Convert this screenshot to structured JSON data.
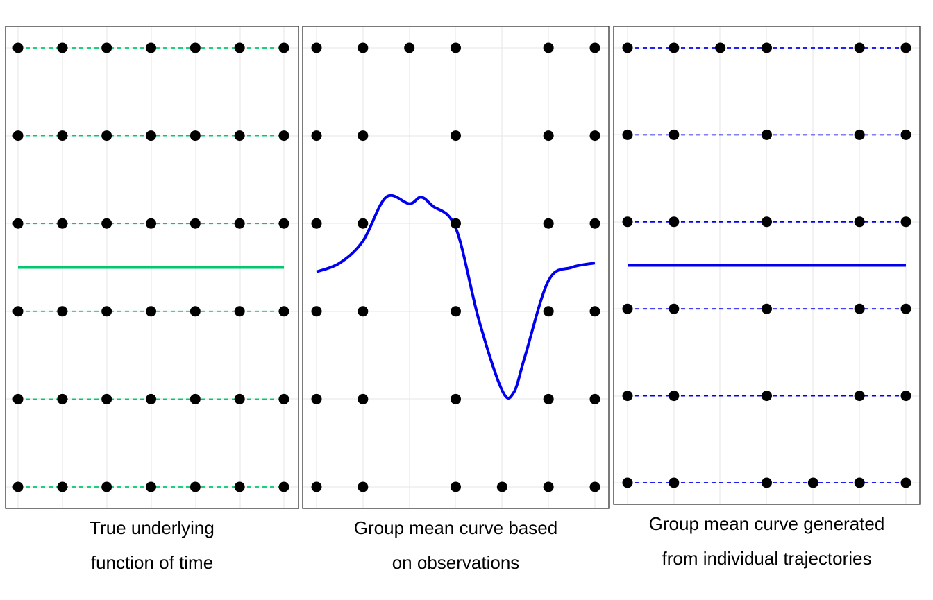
{
  "chart_data": [
    {
      "type": "line",
      "caption_lines": [
        "True underlying",
        "function of time"
      ],
      "x": [
        1,
        2,
        3,
        4,
        5,
        6,
        7
      ],
      "ylim": [
        0,
        10
      ],
      "grid": true,
      "trajectories": [
        {
          "y": 10,
          "x": [
            1,
            2,
            3,
            4,
            5,
            6,
            7
          ]
        },
        {
          "y": 8,
          "x": [
            1,
            2,
            3,
            4,
            5,
            6,
            7
          ]
        },
        {
          "y": 6,
          "x": [
            1,
            2,
            3,
            4,
            5,
            6,
            7
          ]
        },
        {
          "y": 4,
          "x": [
            1,
            2,
            3,
            4,
            5,
            6,
            7
          ]
        },
        {
          "y": 2,
          "x": [
            1,
            2,
            3,
            4,
            5,
            6,
            7
          ]
        },
        {
          "y": 0,
          "x": [
            1,
            2,
            3,
            4,
            5,
            6,
            7
          ]
        }
      ],
      "trajectory_style": "dashed",
      "trajectory_color": "#00c86e",
      "mean_curve": {
        "x": [
          1,
          7
        ],
        "y": [
          5,
          5
        ],
        "color": "#00c86e"
      }
    },
    {
      "type": "line",
      "caption_lines": [
        "Group mean curve based",
        "on observations"
      ],
      "x": [
        1,
        2,
        3,
        4,
        5,
        6,
        7
      ],
      "ylim": [
        0,
        10
      ],
      "grid": true,
      "trajectories": [
        {
          "y": 10,
          "x": [
            1,
            2,
            3,
            4,
            6,
            7
          ]
        },
        {
          "y": 8,
          "x": [
            1,
            2,
            4,
            6,
            7
          ]
        },
        {
          "y": 6,
          "x": [
            1,
            2,
            4,
            6,
            7
          ]
        },
        {
          "y": 4,
          "x": [
            1,
            2,
            4,
            6,
            7
          ]
        },
        {
          "y": 2,
          "x": [
            1,
            2,
            4,
            6,
            7
          ]
        },
        {
          "y": 0,
          "x": [
            1,
            2,
            4,
            5,
            6,
            7
          ]
        }
      ],
      "trajectory_style": "none",
      "mean_curve": {
        "x": [
          1.0,
          1.5,
          2.0,
          2.5,
          3.0,
          3.25,
          3.5,
          4.0,
          4.5,
          5.0,
          5.25,
          5.5,
          6.0,
          6.5,
          7.0
        ],
        "y": [
          4.9,
          5.1,
          5.6,
          6.6,
          6.45,
          6.6,
          6.4,
          5.9,
          3.8,
          2.2,
          2.15,
          3.0,
          4.7,
          5.0,
          5.1
        ],
        "color": "#0000ee"
      }
    },
    {
      "type": "line",
      "caption_lines": [
        "Group mean curve generated",
        "from individual trajectories"
      ],
      "x": [
        1,
        2,
        3,
        4,
        5,
        6,
        7
      ],
      "ylim": [
        0,
        10
      ],
      "grid": true,
      "trajectories": [
        {
          "y": 10,
          "x": [
            1,
            2,
            3,
            4,
            6,
            7
          ]
        },
        {
          "y": 8,
          "x": [
            1,
            2,
            4,
            6,
            7
          ]
        },
        {
          "y": 6,
          "x": [
            1,
            2,
            4,
            6,
            7
          ]
        },
        {
          "y": 4,
          "x": [
            1,
            2,
            4,
            6,
            7
          ]
        },
        {
          "y": 2,
          "x": [
            1,
            2,
            4,
            6,
            7
          ]
        },
        {
          "y": 0,
          "x": [
            1,
            2,
            4,
            5,
            6,
            7
          ]
        }
      ],
      "trajectory_style": "dashed",
      "trajectory_color": "#0000ee",
      "mean_curve": {
        "x": [
          1,
          7
        ],
        "y": [
          5,
          5
        ],
        "color": "#0000ee"
      }
    }
  ]
}
